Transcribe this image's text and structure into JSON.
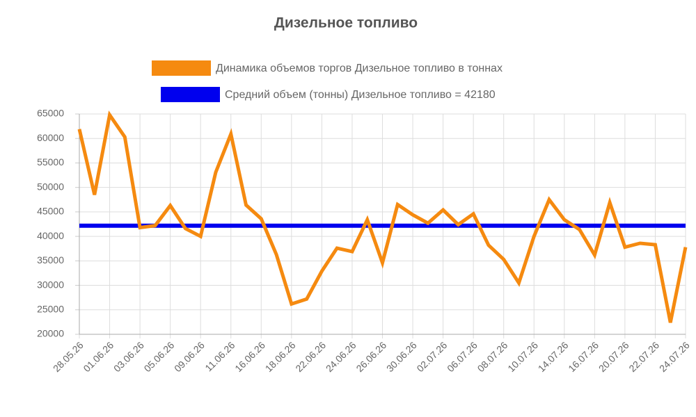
{
  "chart_data": {
    "type": "line",
    "title": "Дизельное топливо",
    "categories": [
      "28.05.26",
      null,
      "01.06.26",
      null,
      "03.06.26",
      null,
      "05.06.26",
      null,
      "09.06.26",
      null,
      "11.06.26",
      null,
      "16.06.26",
      null,
      "18.06.26",
      null,
      "22.06.26",
      null,
      "24.06.26",
      null,
      "26.06.26",
      null,
      "30.06.26",
      null,
      "02.07.26",
      null,
      "06.07.26",
      null,
      "08.07.26",
      null,
      "10.07.26",
      null,
      "14.07.26",
      null,
      "16.07.26",
      null,
      "20.07.26",
      null,
      "22.07.26",
      null,
      "24.07.26"
    ],
    "series": [
      {
        "name": "Динамика объемов торгов Дизельное топливо в тоннах",
        "color": "#f58a10",
        "values": [
          61900,
          48500,
          64800,
          60300,
          41800,
          42200,
          46300,
          41600,
          40000,
          53100,
          60900,
          46400,
          43600,
          36300,
          26200,
          27200,
          32900,
          37600,
          36900,
          43400,
          34600,
          46500,
          44400,
          42700,
          45400,
          42400,
          44600,
          38200,
          35300,
          30500,
          40000,
          47500,
          43400,
          41400,
          36200,
          46900,
          37800,
          38600,
          38300,
          22400,
          37800
        ]
      },
      {
        "name": "Средний объем (тонны) Дизельное топливо = 42180",
        "color": "#0000ee",
        "values": [
          42180,
          42180,
          42180,
          42180,
          42180,
          42180,
          42180,
          42180,
          42180,
          42180,
          42180,
          42180,
          42180,
          42180,
          42180,
          42180,
          42180,
          42180,
          42180,
          42180,
          42180,
          42180,
          42180,
          42180,
          42180,
          42180,
          42180,
          42180,
          42180,
          42180,
          42180,
          42180,
          42180,
          42180,
          42180,
          42180,
          42180,
          42180,
          42180,
          42180,
          42180
        ]
      }
    ],
    "ylim": [
      20000,
      65000
    ],
    "yticks": [
      20000,
      25000,
      30000,
      35000,
      40000,
      45000,
      50000,
      55000,
      60000,
      65000
    ],
    "grid": true
  }
}
